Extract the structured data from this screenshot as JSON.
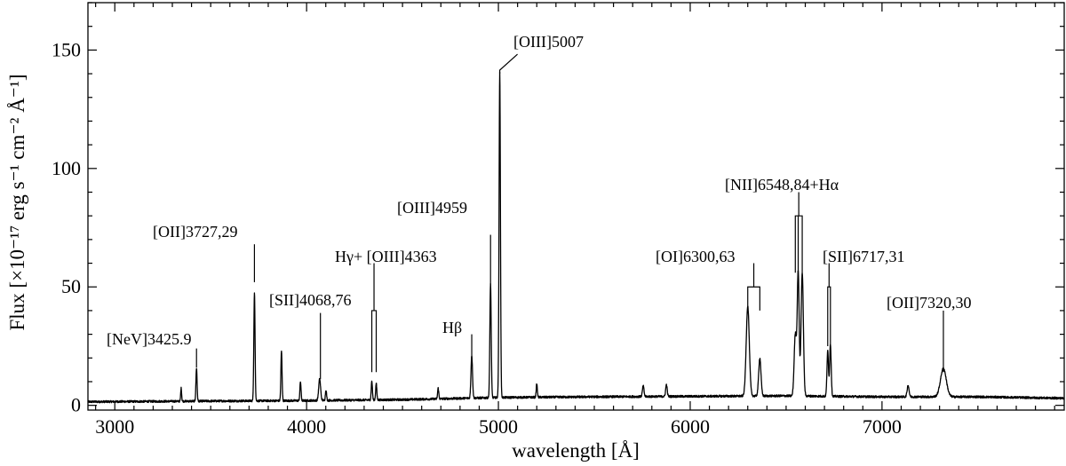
{
  "chart_data": {
    "type": "line",
    "xlabel": "wavelength [Å]",
    "ylabel": "Flux [×10⁻¹⁷ erg s⁻¹ cm⁻² Å⁻¹]",
    "xlim": [
      2860,
      7950
    ],
    "ylim": [
      -2,
      170
    ],
    "x_ticks": [
      3000,
      4000,
      5000,
      6000,
      7000
    ],
    "y_ticks": [
      0,
      50,
      100,
      150
    ],
    "x_minor_step": 100,
    "y_minor_step": 10,
    "grid": false,
    "continuum": [
      [
        2860,
        1.5
      ],
      [
        3500,
        1.8
      ],
      [
        4000,
        2.0
      ],
      [
        4500,
        2.4
      ],
      [
        5000,
        3.3
      ],
      [
        5500,
        3.6
      ],
      [
        6000,
        3.8
      ],
      [
        6500,
        4.0
      ],
      [
        7000,
        3.6
      ],
      [
        7500,
        3.6
      ],
      [
        7950,
        3.0
      ]
    ],
    "emission_lines": [
      {
        "x": 3346,
        "peak": 5.5,
        "width": 2.5
      },
      {
        "x": 3426,
        "peak": 14,
        "width": 3
      },
      {
        "x": 3727,
        "peak": 22,
        "width": 3
      },
      {
        "x": 3729,
        "peak": 26,
        "width": 3
      },
      {
        "x": 3869,
        "peak": 21,
        "width": 3
      },
      {
        "x": 3968,
        "peak": 8,
        "width": 3
      },
      {
        "x": 4068,
        "peak": 9,
        "width": 5
      },
      {
        "x": 4101,
        "peak": 4.5,
        "width": 3
      },
      {
        "x": 4340,
        "peak": 8,
        "width": 3
      },
      {
        "x": 4363,
        "peak": 7,
        "width": 3
      },
      {
        "x": 4686,
        "peak": 4.5,
        "width": 3
      },
      {
        "x": 4861,
        "peak": 18,
        "width": 4
      },
      {
        "x": 4959,
        "peak": 48,
        "width": 3.5
      },
      {
        "x": 5007,
        "peak": 137,
        "width": 3.5
      },
      {
        "x": 5200,
        "peak": 5.5,
        "width": 3
      },
      {
        "x": 5755,
        "peak": 4.5,
        "width": 4
      },
      {
        "x": 5876,
        "peak": 5,
        "width": 4
      },
      {
        "x": 6300,
        "peak": 38,
        "width": 8
      },
      {
        "x": 6363,
        "peak": 16,
        "width": 6
      },
      {
        "x": 6548,
        "peak": 26,
        "width": 6
      },
      {
        "x": 6563,
        "peak": 52,
        "width": 5
      },
      {
        "x": 6584,
        "peak": 52,
        "width": 6
      },
      {
        "x": 6717,
        "peak": 19,
        "width": 4
      },
      {
        "x": 6731,
        "peak": 22,
        "width": 4
      },
      {
        "x": 7136,
        "peak": 4.8,
        "width": 5
      },
      {
        "x": 7320,
        "peak": 12,
        "width": 15
      }
    ],
    "annotations": [
      {
        "label": "[NeV]3425.9",
        "x": [
          3426
        ],
        "y_bottom": 16,
        "y_top": 24
      },
      {
        "label": "[OII]3727,29",
        "x": [
          3728
        ],
        "y_bottom": 52,
        "y_top": 68
      },
      {
        "label": "[SII]4068,76",
        "x": [
          4072
        ],
        "y_bottom": 11,
        "y_top": 39
      },
      {
        "label": "Hγ+ [OIII]4363",
        "x": [
          4340,
          4363
        ],
        "y_bottom": 14,
        "y_top": 60,
        "bracket_y": 40
      },
      {
        "label": "Hβ",
        "x": [
          4861
        ],
        "y_bottom": 20,
        "y_top": 30
      },
      {
        "label": "[OIII]4959",
        "x": [
          4959
        ],
        "y_bottom": 50,
        "y_top": 72
      },
      {
        "label": "[OIII]5007",
        "x": [
          5007
        ],
        "y_bottom": 140,
        "y_top": 150
      },
      {
        "label": "[OI]6300,63",
        "x": [
          6300,
          6363
        ],
        "y_bottom": 40,
        "y_top": 60,
        "bracket_y": 50
      },
      {
        "label": "[NII]6548,84+Hα",
        "x": [
          6548,
          6563,
          6584
        ],
        "y_bottom": 56,
        "y_top": 90,
        "bracket_y": 80
      },
      {
        "label": "[SII]6717,31",
        "x": [
          6717,
          6731
        ],
        "y_bottom": 25,
        "y_top": 60,
        "bracket_y": 50
      },
      {
        "label": "[OII]7320,30",
        "x": [
          7320
        ],
        "y_bottom": 14,
        "y_top": 40
      }
    ]
  }
}
